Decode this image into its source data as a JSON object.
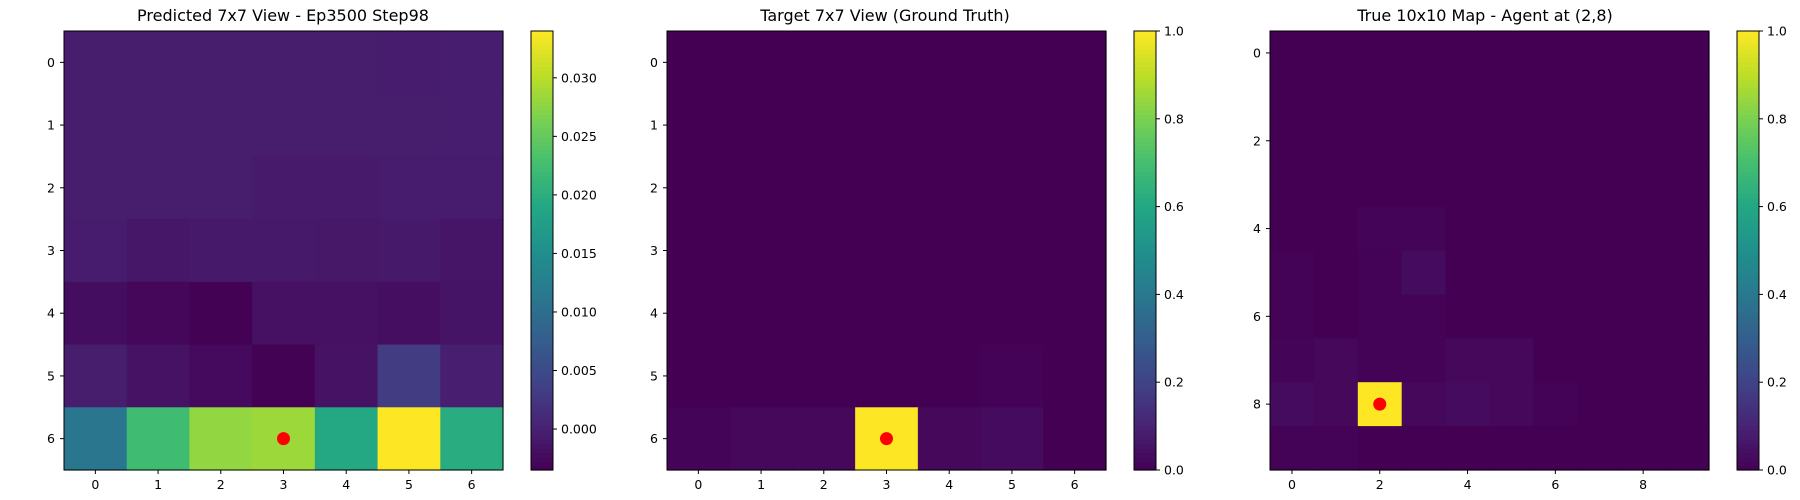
{
  "chart_data": [
    {
      "type": "heatmap",
      "title": "Predicted 7x7 View - Ep3500 Step98",
      "rows": 7,
      "cols": 7,
      "xticks": [
        0,
        1,
        2,
        3,
        4,
        5,
        6
      ],
      "yticks": [
        0,
        1,
        2,
        3,
        4,
        5,
        6
      ],
      "colormap": "viridis",
      "vmin": -0.0035,
      "vmax": 0.034,
      "colorbar_ticks": [
        0.0,
        0.005,
        0.01,
        0.015,
        0.02,
        0.025,
        0.03
      ],
      "colorbar_labels": [
        "0.000",
        "0.005",
        "0.010",
        "0.015",
        "0.020",
        "0.025",
        "0.030"
      ],
      "marker": {
        "row": 6,
        "col": 3,
        "color": "#ff0000"
      },
      "values": [
        [
          -0.0004,
          -0.0004,
          -0.0004,
          -0.0004,
          -0.0004,
          -0.0005,
          -0.0003
        ],
        [
          -0.0004,
          -0.0004,
          -0.0004,
          -0.0004,
          -0.0004,
          -0.0004,
          -0.0003
        ],
        [
          -0.0004,
          -0.0004,
          -0.0004,
          -0.0007,
          -0.0007,
          -0.0006,
          -0.0005
        ],
        [
          -0.0005,
          -0.0012,
          -0.0008,
          -0.0009,
          -0.0011,
          -0.0008,
          -0.0013
        ],
        [
          -0.0022,
          -0.0028,
          -0.0034,
          -0.0018,
          -0.0018,
          -0.0021,
          -0.0014
        ],
        [
          -0.0004,
          -0.0016,
          -0.0025,
          -0.0034,
          -0.0016,
          0.0032,
          -0.0002
        ],
        [
          0.0112,
          0.0223,
          0.0279,
          0.0285,
          0.0192,
          0.034,
          0.0198
        ]
      ]
    },
    {
      "type": "heatmap",
      "title": "Target 7x7 View (Ground Truth)",
      "rows": 7,
      "cols": 7,
      "xticks": [
        0,
        1,
        2,
        3,
        4,
        5,
        6
      ],
      "yticks": [
        0,
        1,
        2,
        3,
        4,
        5,
        6
      ],
      "colormap": "viridis",
      "vmin": 0.0,
      "vmax": 1.0,
      "colorbar_ticks": [
        0.0,
        0.2,
        0.4,
        0.6,
        0.8,
        1.0
      ],
      "colorbar_labels": [
        "0.0",
        "0.2",
        "0.4",
        "0.6",
        "0.8",
        "1.0"
      ],
      "marker": {
        "row": 6,
        "col": 3,
        "color": "#ff0000"
      },
      "values": [
        [
          0,
          0,
          0,
          0,
          0,
          0,
          0
        ],
        [
          0,
          0,
          0,
          0,
          0,
          0,
          0
        ],
        [
          0,
          0,
          0,
          0,
          0,
          0,
          0
        ],
        [
          0,
          0,
          0,
          0,
          0,
          0,
          0
        ],
        [
          0,
          0,
          0,
          0,
          0,
          0,
          0
        ],
        [
          0,
          0,
          0,
          0,
          0,
          0.005,
          0
        ],
        [
          0.01,
          0.02,
          0.02,
          1.0,
          0.02,
          0.03,
          0.0
        ]
      ]
    },
    {
      "type": "heatmap",
      "title": "True 10x10 Map - Agent at (2,8)",
      "rows": 10,
      "cols": 10,
      "xticks": [
        0,
        2,
        4,
        6,
        8
      ],
      "yticks": [
        0,
        2,
        4,
        6,
        8
      ],
      "colormap": "viridis",
      "vmin": 0.0,
      "vmax": 1.0,
      "colorbar_ticks": [
        0.0,
        0.2,
        0.4,
        0.6,
        0.8,
        1.0
      ],
      "colorbar_labels": [
        "0.0",
        "0.2",
        "0.4",
        "0.6",
        "0.8",
        "1.0"
      ],
      "marker": {
        "row": 8,
        "col": 2,
        "color": "#ff0000"
      },
      "values": [
        [
          0,
          0,
          0,
          0,
          0,
          0,
          0,
          0,
          0,
          0
        ],
        [
          0,
          0,
          0,
          0,
          0,
          0,
          0,
          0,
          0,
          0
        ],
        [
          0,
          0,
          0,
          0,
          0,
          0,
          0,
          0,
          0,
          0
        ],
        [
          0,
          0,
          0,
          0,
          0,
          0,
          0,
          0,
          0,
          0
        ],
        [
          0,
          0,
          0.01,
          0.01,
          0,
          0,
          0,
          0,
          0,
          0
        ],
        [
          0.005,
          0,
          0.005,
          0.03,
          0,
          0,
          0,
          0,
          0,
          0
        ],
        [
          0.005,
          0,
          0.005,
          0.005,
          0,
          0,
          0,
          0,
          0,
          0
        ],
        [
          0.01,
          0.02,
          0.005,
          0.005,
          0.02,
          0.02,
          0,
          0,
          0,
          0
        ],
        [
          0.03,
          0.02,
          1.0,
          0.02,
          0.03,
          0.02,
          0.005,
          0,
          0,
          0
        ],
        [
          0.005,
          0.005,
          0,
          0,
          0,
          0,
          0,
          0,
          0,
          0
        ]
      ]
    }
  ]
}
